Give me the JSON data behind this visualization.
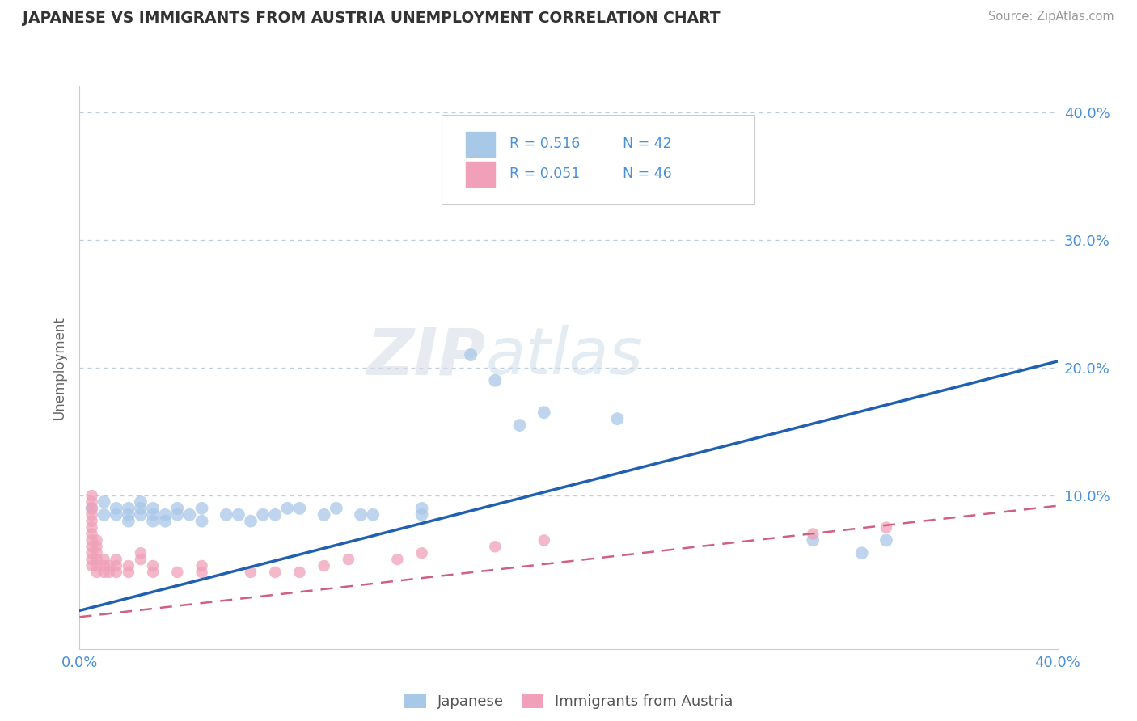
{
  "title": "JAPANESE VS IMMIGRANTS FROM AUSTRIA UNEMPLOYMENT CORRELATION CHART",
  "source": "Source: ZipAtlas.com",
  "ylabel": "Unemployment",
  "ytick_labels": [
    "10.0%",
    "20.0%",
    "30.0%",
    "40.0%"
  ],
  "ytick_values": [
    0.1,
    0.2,
    0.3,
    0.4
  ],
  "xlim": [
    0.0,
    0.4
  ],
  "ylim": [
    -0.02,
    0.42
  ],
  "blue_color": "#a8c8e8",
  "pink_color": "#f0a0b8",
  "trend_blue": "#2060b0",
  "trend_pink": "#d06080",
  "background": "#ffffff",
  "grid_color": "#c0cce0",
  "watermark_zip": "ZIP",
  "watermark_atlas": "atlas",
  "legend_text1_r": "R = 0.516",
  "legend_text1_n": "N = 42",
  "legend_text2_r": "R = 0.051",
  "legend_text2_n": "N = 46",
  "blue_trendline": [
    [
      0.0,
      0.01
    ],
    [
      0.4,
      0.205
    ]
  ],
  "pink_trendline": [
    [
      0.0,
      0.005
    ],
    [
      0.4,
      0.092
    ]
  ],
  "japanese_points": [
    [
      0.005,
      0.09
    ],
    [
      0.01,
      0.085
    ],
    [
      0.01,
      0.095
    ],
    [
      0.015,
      0.085
    ],
    [
      0.015,
      0.09
    ],
    [
      0.02,
      0.09
    ],
    [
      0.02,
      0.085
    ],
    [
      0.02,
      0.08
    ],
    [
      0.025,
      0.085
    ],
    [
      0.025,
      0.09
    ],
    [
      0.025,
      0.095
    ],
    [
      0.03,
      0.08
    ],
    [
      0.03,
      0.09
    ],
    [
      0.03,
      0.085
    ],
    [
      0.035,
      0.085
    ],
    [
      0.035,
      0.08
    ],
    [
      0.04,
      0.09
    ],
    [
      0.04,
      0.085
    ],
    [
      0.045,
      0.085
    ],
    [
      0.05,
      0.09
    ],
    [
      0.05,
      0.08
    ],
    [
      0.06,
      0.085
    ],
    [
      0.065,
      0.085
    ],
    [
      0.07,
      0.08
    ],
    [
      0.075,
      0.085
    ],
    [
      0.08,
      0.085
    ],
    [
      0.085,
      0.09
    ],
    [
      0.09,
      0.09
    ],
    [
      0.1,
      0.085
    ],
    [
      0.105,
      0.09
    ],
    [
      0.115,
      0.085
    ],
    [
      0.12,
      0.085
    ],
    [
      0.14,
      0.085
    ],
    [
      0.14,
      0.09
    ],
    [
      0.16,
      0.21
    ],
    [
      0.17,
      0.19
    ],
    [
      0.18,
      0.155
    ],
    [
      0.19,
      0.165
    ],
    [
      0.22,
      0.16
    ],
    [
      0.3,
      0.065
    ],
    [
      0.32,
      0.055
    ],
    [
      0.33,
      0.065
    ]
  ],
  "austria_points": [
    [
      0.005,
      0.045
    ],
    [
      0.005,
      0.05
    ],
    [
      0.005,
      0.055
    ],
    [
      0.005,
      0.06
    ],
    [
      0.005,
      0.065
    ],
    [
      0.005,
      0.07
    ],
    [
      0.005,
      0.075
    ],
    [
      0.005,
      0.08
    ],
    [
      0.005,
      0.085
    ],
    [
      0.005,
      0.09
    ],
    [
      0.005,
      0.095
    ],
    [
      0.005,
      0.1
    ],
    [
      0.007,
      0.04
    ],
    [
      0.007,
      0.045
    ],
    [
      0.007,
      0.05
    ],
    [
      0.007,
      0.055
    ],
    [
      0.007,
      0.06
    ],
    [
      0.007,
      0.065
    ],
    [
      0.01,
      0.04
    ],
    [
      0.01,
      0.045
    ],
    [
      0.01,
      0.05
    ],
    [
      0.012,
      0.04
    ],
    [
      0.012,
      0.045
    ],
    [
      0.015,
      0.04
    ],
    [
      0.015,
      0.045
    ],
    [
      0.015,
      0.05
    ],
    [
      0.02,
      0.04
    ],
    [
      0.02,
      0.045
    ],
    [
      0.025,
      0.05
    ],
    [
      0.025,
      0.055
    ],
    [
      0.03,
      0.04
    ],
    [
      0.03,
      0.045
    ],
    [
      0.04,
      0.04
    ],
    [
      0.05,
      0.04
    ],
    [
      0.05,
      0.045
    ],
    [
      0.07,
      0.04
    ],
    [
      0.08,
      0.04
    ],
    [
      0.09,
      0.04
    ],
    [
      0.1,
      0.045
    ],
    [
      0.11,
      0.05
    ],
    [
      0.13,
      0.05
    ],
    [
      0.14,
      0.055
    ],
    [
      0.17,
      0.06
    ],
    [
      0.19,
      0.065
    ],
    [
      0.3,
      0.07
    ],
    [
      0.33,
      0.075
    ]
  ]
}
